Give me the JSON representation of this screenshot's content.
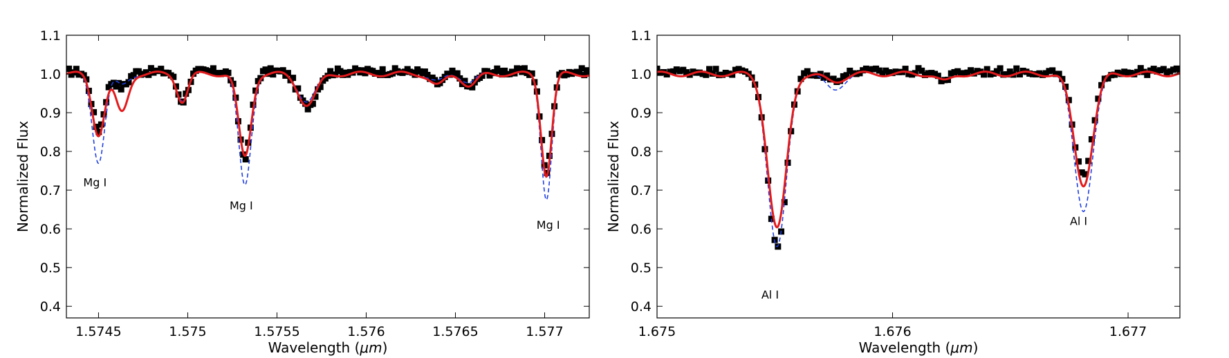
{
  "chart_data": [
    {
      "type": "line",
      "xlabel": "Wavelength ($\\mu m$)",
      "xlabel_text": "Wavelength (",
      "xlabel_unit": "μm",
      "xlabel_close": ")",
      "ylabel": "Normalized Flux",
      "xlim": [
        1.57432,
        1.57725
      ],
      "ylim": [
        0.37,
        1.1
      ],
      "xticks": [
        1.5745,
        1.575,
        1.5755,
        1.576,
        1.5765,
        1.577
      ],
      "xtick_labels": [
        "1.5745",
        "1.575",
        "1.5755",
        "1.576",
        "1.5765",
        "1.577"
      ],
      "yticks": [
        0.4,
        0.5,
        0.6,
        0.7,
        0.8,
        0.9,
        1.0,
        1.1
      ],
      "ytick_labels": [
        "0.4",
        "0.5",
        "0.6",
        "0.7",
        "0.8",
        "0.9",
        "1.0",
        "1.1"
      ],
      "grid": false,
      "annotations": [
        {
          "text": "Mg I",
          "x": 1.57448,
          "y": 0.71
        },
        {
          "text": "Mg I",
          "x": 1.5753,
          "y": 0.65
        },
        {
          "text": "Mg I",
          "x": 1.57702,
          "y": 0.6
        }
      ],
      "lines": [
        {
          "center": 1.5745,
          "depth_obs": 0.15,
          "depth_red": 0.155,
          "depth_blue": 0.225,
          "sigma": 3.5e-05
        },
        {
          "center": 1.57463,
          "depth_obs": 0.04,
          "depth_red": 0.1,
          "depth_blue": 0.03,
          "sigma": 3.5e-05
        },
        {
          "center": 1.57497,
          "depth_obs": 0.075,
          "depth_red": 0.07,
          "depth_blue": 0.065,
          "sigma": 3e-05
        },
        {
          "center": 1.57532,
          "depth_obs": 0.22,
          "depth_red": 0.215,
          "depth_blue": 0.29,
          "sigma": 3.5e-05
        },
        {
          "center": 1.57567,
          "depth_obs": 0.09,
          "depth_red": 0.08,
          "depth_blue": 0.07,
          "sigma": 5e-05
        },
        {
          "center": 1.5764,
          "depth_obs": 0.03,
          "depth_red": 0.03,
          "depth_blue": 0.02,
          "sigma": 4e-05
        },
        {
          "center": 1.57658,
          "depth_obs": 0.04,
          "depth_red": 0.03,
          "depth_blue": 0.02,
          "sigma": 4e-05
        },
        {
          "center": 1.57701,
          "depth_obs": 0.26,
          "depth_red": 0.26,
          "depth_blue": 0.32,
          "sigma": 3e-05
        }
      ],
      "series": [
        {
          "kind": "observed",
          "color": "#000000",
          "marker": "square"
        },
        {
          "kind": "model",
          "color": "#e31a1c",
          "style": "solid"
        },
        {
          "kind": "model",
          "color": "#1f3fe0",
          "style": "dashed"
        }
      ]
    },
    {
      "type": "line",
      "xlabel": "Wavelength ($\\mu m$)",
      "xlabel_text": "Wavelength (",
      "xlabel_unit": "μm",
      "xlabel_close": ")",
      "ylabel": "Normalized Flux",
      "xlim": [
        1.675,
        1.67722
      ],
      "ylim": [
        0.37,
        1.1
      ],
      "xticks": [
        1.675,
        1.676,
        1.677
      ],
      "xtick_labels": [
        "1.675",
        "1.676",
        "1.677"
      ],
      "yticks": [
        0.4,
        0.5,
        0.6,
        0.7,
        0.8,
        0.9,
        1.0,
        1.1
      ],
      "ytick_labels": [
        "0.4",
        "0.5",
        "0.6",
        "0.7",
        "0.8",
        "0.9",
        "1.0",
        "1.1"
      ],
      "grid": false,
      "annotations": [
        {
          "text": "Al I",
          "x": 1.67548,
          "y": 0.42
        },
        {
          "text": "Al I",
          "x": 1.67679,
          "y": 0.61
        }
      ],
      "lines": [
        {
          "center": 1.67551,
          "depth_obs": 0.455,
          "depth_red": 0.4,
          "depth_blue": 0.45,
          "sigma": 4e-05
        },
        {
          "center": 1.67575,
          "depth_obs": 0.02,
          "depth_red": 0.02,
          "depth_blue": 0.04,
          "sigma": 4e-05
        },
        {
          "center": 1.67622,
          "depth_obs": 0.02,
          "depth_red": 0.02,
          "depth_blue": 0.02,
          "sigma": 3e-05
        },
        {
          "center": 1.67681,
          "depth_obs": 0.27,
          "depth_red": 0.285,
          "depth_blue": 0.35,
          "sigma": 4e-05
        }
      ],
      "series": [
        {
          "kind": "observed",
          "color": "#000000",
          "marker": "square"
        },
        {
          "kind": "model",
          "color": "#e31a1c",
          "style": "solid"
        },
        {
          "kind": "model",
          "color": "#1f3fe0",
          "style": "dashed"
        }
      ]
    }
  ]
}
